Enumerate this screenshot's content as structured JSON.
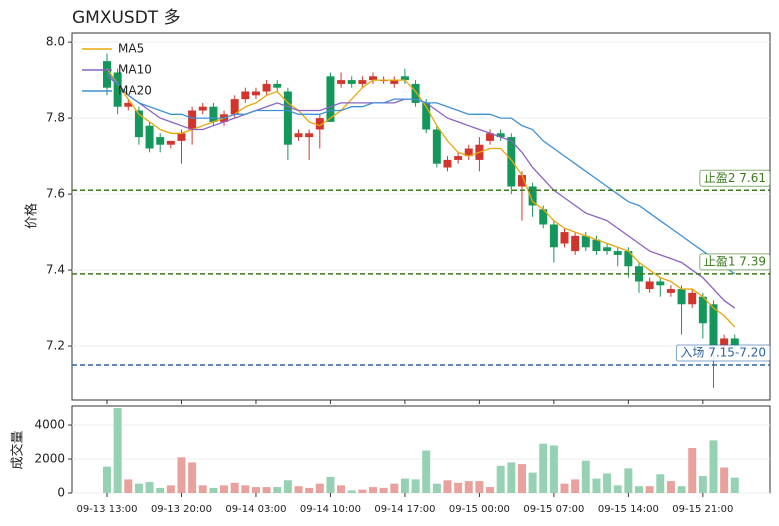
{
  "chart_data": {
    "type": "candlestick",
    "title": "GMXUSDT  多",
    "y_label": "价格",
    "volume_label": "成交量",
    "categories": [
      "09-13 13:00",
      null,
      null,
      null,
      null,
      null,
      null,
      "09-13 20:00",
      null,
      null,
      null,
      null,
      null,
      null,
      "09-14 03:00",
      null,
      null,
      null,
      null,
      null,
      null,
      "09-14 10:00",
      null,
      null,
      null,
      null,
      null,
      null,
      "09-14 17:00",
      null,
      null,
      null,
      null,
      null,
      null,
      "09-15 00:00",
      null,
      null,
      null,
      null,
      null,
      null,
      "09-15 07:00",
      null,
      null,
      null,
      null,
      null,
      null,
      "09-15 14:00",
      null,
      null,
      null,
      null,
      null,
      null,
      "09-15 21:00",
      null,
      null,
      null
    ],
    "open": [
      7.95,
      7.92,
      7.83,
      7.82,
      7.78,
      7.75,
      7.73,
      7.74,
      7.77,
      7.82,
      7.83,
      7.79,
      7.81,
      7.85,
      7.86,
      7.87,
      7.89,
      7.87,
      7.75,
      7.75,
      7.77,
      7.91,
      7.89,
      7.9,
      7.89,
      7.9,
      7.9,
      7.89,
      7.91,
      7.89,
      7.84,
      7.77,
      7.67,
      7.69,
      7.7,
      7.69,
      7.74,
      7.76,
      7.75,
      7.62,
      7.62,
      7.56,
      7.52,
      7.47,
      7.45,
      7.49,
      7.48,
      7.46,
      7.45,
      7.45,
      7.41,
      7.35,
      7.37,
      7.34,
      7.35,
      7.31,
      7.33,
      7.31,
      7.2,
      7.22
    ],
    "high": [
      7.97,
      7.93,
      7.85,
      7.83,
      7.79,
      7.76,
      7.74,
      7.77,
      7.83,
      7.84,
      7.84,
      7.82,
      7.86,
      7.88,
      7.88,
      7.9,
      7.9,
      7.88,
      7.77,
      7.77,
      7.81,
      7.92,
      7.92,
      7.91,
      7.91,
      7.92,
      7.91,
      7.91,
      7.93,
      7.9,
      7.85,
      7.78,
      7.7,
      7.71,
      7.73,
      7.75,
      7.77,
      7.77,
      7.76,
      7.66,
      7.63,
      7.57,
      7.53,
      7.51,
      7.5,
      7.5,
      7.49,
      7.47,
      7.46,
      7.46,
      7.42,
      7.38,
      7.38,
      7.36,
      7.36,
      7.35,
      7.34,
      7.32,
      7.23,
      7.23
    ],
    "low": [
      7.86,
      7.81,
      7.82,
      7.73,
      7.71,
      7.71,
      7.72,
      7.68,
      7.73,
      7.81,
      7.78,
      7.78,
      7.8,
      7.84,
      7.85,
      7.86,
      7.87,
      7.69,
      7.74,
      7.69,
      7.72,
      7.79,
      7.88,
      7.88,
      7.88,
      7.89,
      7.89,
      7.88,
      7.89,
      7.83,
      7.76,
      7.67,
      7.66,
      7.68,
      7.69,
      7.66,
      7.73,
      7.74,
      7.6,
      7.53,
      7.54,
      7.51,
      7.42,
      7.46,
      7.44,
      7.45,
      7.44,
      7.44,
      7.41,
      7.38,
      7.34,
      7.34,
      7.33,
      7.33,
      7.23,
      7.3,
      7.22,
      7.09,
      7.19,
      7.19
    ],
    "close": [
      7.88,
      7.83,
      7.84,
      7.75,
      7.72,
      7.73,
      7.74,
      7.76,
      7.82,
      7.83,
      7.79,
      7.81,
      7.85,
      7.87,
      7.87,
      7.89,
      7.88,
      7.73,
      7.76,
      7.76,
      7.8,
      7.79,
      7.9,
      7.89,
      7.9,
      7.91,
      7.9,
      7.9,
      7.9,
      7.84,
      7.77,
      7.68,
      7.69,
      7.7,
      7.72,
      7.73,
      7.76,
      7.75,
      7.62,
      7.65,
      7.57,
      7.52,
      7.46,
      7.5,
      7.49,
      7.46,
      7.45,
      7.45,
      7.44,
      7.41,
      7.37,
      7.37,
      7.36,
      7.35,
      7.31,
      7.34,
      7.26,
      7.2,
      7.22,
      7.2
    ],
    "volume": [
      1550,
      5000,
      800,
      550,
      650,
      300,
      450,
      2100,
      1800,
      450,
      300,
      450,
      600,
      450,
      350,
      350,
      350,
      750,
      400,
      300,
      550,
      950,
      450,
      150,
      200,
      350,
      300,
      550,
      850,
      800,
      2500,
      550,
      750,
      600,
      700,
      700,
      350,
      1600,
      1800,
      1700,
      1200,
      2900,
      2800,
      550,
      800,
      1900,
      850,
      1150,
      450,
      1450,
      400,
      400,
      1100,
      700,
      400,
      2650,
      1000,
      3100,
      1500,
      900
    ],
    "up_color": "#d2352b",
    "down_color": "#13975a",
    "volume_up_color": "#e8a19d",
    "volume_down_color": "#96d1b4",
    "series": [
      {
        "name": "MA5",
        "color": "#e8a80c",
        "values": [
          7.93,
          7.89,
          7.85,
          7.81,
          7.79,
          7.77,
          7.76,
          7.76,
          7.77,
          7.78,
          7.79,
          7.8,
          7.81,
          7.83,
          7.84,
          7.86,
          7.87,
          7.84,
          7.82,
          7.79,
          7.78,
          7.8,
          7.82,
          7.85,
          7.88,
          7.9,
          7.9,
          7.9,
          7.9,
          7.87,
          7.83,
          7.78,
          7.74,
          7.71,
          7.7,
          7.71,
          7.72,
          7.72,
          7.69,
          7.65,
          7.58,
          7.56,
          7.53,
          7.51,
          7.5,
          7.49,
          7.48,
          7.47,
          7.46,
          7.45,
          7.42,
          7.4,
          7.38,
          7.37,
          7.35,
          7.35,
          7.33,
          7.3,
          7.28,
          7.25
        ]
      },
      {
        "name": "MA10",
        "color": "#8a62c4",
        "values": [
          7.91,
          7.89,
          7.86,
          7.84,
          7.82,
          7.8,
          7.79,
          7.78,
          7.77,
          7.77,
          7.78,
          7.79,
          7.8,
          7.81,
          7.82,
          7.83,
          7.84,
          7.83,
          7.82,
          7.82,
          7.82,
          7.83,
          7.84,
          7.84,
          7.84,
          7.84,
          7.84,
          7.84,
          7.85,
          7.85,
          7.84,
          7.82,
          7.8,
          7.79,
          7.78,
          7.77,
          7.76,
          7.75,
          7.74,
          7.71,
          7.67,
          7.64,
          7.61,
          7.59,
          7.57,
          7.55,
          7.54,
          7.53,
          7.51,
          7.49,
          7.47,
          7.45,
          7.44,
          7.43,
          7.42,
          7.4,
          7.38,
          7.35,
          7.32,
          7.3
        ]
      },
      {
        "name": "MA20",
        "color": "#3f90d4",
        "values": [
          7.92,
          7.89,
          7.86,
          7.84,
          7.83,
          7.82,
          7.81,
          7.81,
          7.8,
          7.8,
          7.8,
          7.8,
          7.81,
          7.81,
          7.82,
          7.82,
          7.82,
          7.82,
          7.81,
          7.81,
          7.81,
          7.82,
          7.82,
          7.83,
          7.83,
          7.84,
          7.84,
          7.85,
          7.85,
          7.85,
          7.84,
          7.84,
          7.83,
          7.82,
          7.81,
          7.81,
          7.81,
          7.8,
          7.8,
          7.78,
          7.77,
          7.74,
          7.72,
          7.7,
          7.68,
          7.66,
          7.64,
          7.62,
          7.6,
          7.58,
          7.57,
          7.55,
          7.53,
          7.51,
          7.49,
          7.47,
          7.45,
          7.43,
          7.41,
          7.39
        ]
      }
    ],
    "levels": [
      {
        "value": 7.61,
        "label": "止盈2 7.61",
        "color": "#3b7a1c"
      },
      {
        "value": 7.39,
        "label": "止盈1 7.39",
        "color": "#3b7a1c"
      },
      {
        "value": 7.15,
        "label": "入场 7.15-7.20",
        "color": "#2d62a8"
      }
    ],
    "ylim": [
      7.058,
      8.024
    ],
    "yticks": [
      7.2,
      7.4,
      7.6,
      7.8,
      {
        "value": 8,
        "label": "8.0"
      }
    ],
    "volume_ylim": [
      0,
      5120
    ],
    "volume_yticks": [
      0,
      2000,
      4000
    ],
    "grid": true
  }
}
